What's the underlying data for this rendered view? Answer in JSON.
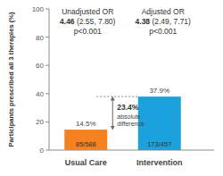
{
  "chart_data": {
    "type": "bar",
    "ylabel": "Participants prescribed all 3 therapies (%)",
    "categories": [
      "Usual Care",
      "Intervention"
    ],
    "values": [
      14.5,
      37.9
    ],
    "value_labels": [
      "14.5%",
      "37.9%"
    ],
    "data_labels": true,
    "counts": [
      "85/588",
      "173/457"
    ],
    "colors": [
      "#f5821f",
      "#1ba1db"
    ],
    "ylim": [
      0,
      100
    ],
    "yticks": [
      0,
      20,
      40,
      60,
      80,
      100
    ],
    "grid": false,
    "odds_ratios": [
      {
        "title": "Unadjusted OR",
        "estimate": "4.46",
        "ci": "(2.55, 7.80)",
        "p": "p<0.001"
      },
      {
        "title": "Adjusted OR",
        "estimate": "4.38",
        "ci": "(2.49, 7.71)",
        "p": "p<0.001"
      }
    ],
    "difference": {
      "label": "23.4%",
      "text": "absolute difference"
    }
  }
}
